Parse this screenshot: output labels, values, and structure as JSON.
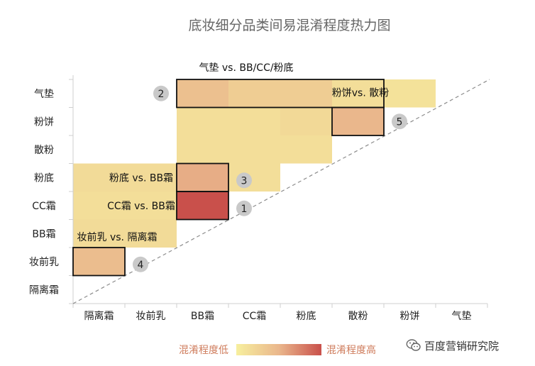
{
  "chart_data": {
    "type": "heatmap",
    "title": "底妆细分品类间易混淆程度热力图",
    "categories": [
      "隔离霜",
      "妆前乳",
      "BB霜",
      "CC霜",
      "粉底",
      "散粉",
      "粉饼",
      "气垫"
    ],
    "cells": [
      {
        "row": "妆前乳",
        "col": "隔离霜",
        "value": 0.45
      },
      {
        "row": "BB霜",
        "col": "隔离霜",
        "value": 0.18
      },
      {
        "row": "BB霜",
        "col": "妆前乳",
        "value": 0.18
      },
      {
        "row": "CC霜",
        "col": "隔离霜",
        "value": 0.15
      },
      {
        "row": "CC霜",
        "col": "妆前乳",
        "value": 0.15
      },
      {
        "row": "CC霜",
        "col": "BB霜",
        "value": 1.0
      },
      {
        "row": "粉底",
        "col": "隔离霜",
        "value": 0.18
      },
      {
        "row": "粉底",
        "col": "妆前乳",
        "value": 0.18
      },
      {
        "row": "粉底",
        "col": "BB霜",
        "value": 0.55
      },
      {
        "row": "粉底",
        "col": "CC霜",
        "value": 0.15
      },
      {
        "row": "散粉",
        "col": "BB霜",
        "value": 0.15
      },
      {
        "row": "散粉",
        "col": "CC霜",
        "value": 0.15
      },
      {
        "row": "散粉",
        "col": "粉底",
        "value": 0.15
      },
      {
        "row": "粉饼",
        "col": "BB霜",
        "value": 0.15
      },
      {
        "row": "粉饼",
        "col": "CC霜",
        "value": 0.15
      },
      {
        "row": "粉饼",
        "col": "粉底",
        "value": 0.2
      },
      {
        "row": "粉饼",
        "col": "散粉",
        "value": 0.5
      },
      {
        "row": "气垫",
        "col": "BB霜",
        "value": 0.42
      },
      {
        "row": "气垫",
        "col": "CC霜",
        "value": 0.3
      },
      {
        "row": "气垫",
        "col": "粉底",
        "value": 0.3
      },
      {
        "row": "气垫",
        "col": "散粉",
        "value": 0.15
      },
      {
        "row": "气垫",
        "col": "粉饼",
        "value": 0.12
      }
    ],
    "highlights": [
      {
        "number": "1",
        "row": "CC霜",
        "col_start": "BB霜",
        "col_end": "BB霜",
        "label": "CC霜 vs. BB霜"
      },
      {
        "number": "2",
        "row": "气垫",
        "col_start": "BB霜",
        "col_end": "散粉",
        "label": "气垫 vs. BB/CC/粉底"
      },
      {
        "number": "3",
        "row": "粉底",
        "col_start": "BB霜",
        "col_end": "BB霜",
        "label": "粉底 vs. BB霜"
      },
      {
        "number": "4",
        "row": "妆前乳",
        "col_start": "隔离霜",
        "col_end": "隔离霜",
        "label": "妆前乳 vs. 隔离霜"
      },
      {
        "number": "5",
        "row": "粉饼",
        "col_start": "散粉",
        "col_end": "散粉",
        "label": "粉饼vs. 散粉"
      }
    ],
    "legend": {
      "low_label": "混淆程度低",
      "high_label": "混淆程度高",
      "low_color": "#f7ef9e",
      "mid_color": "#eab78c",
      "high_color": "#c9504b"
    },
    "diagonal": "dashed"
  },
  "watermark": {
    "text": "百度营销研究院",
    "icon": "wechat-icon"
  }
}
